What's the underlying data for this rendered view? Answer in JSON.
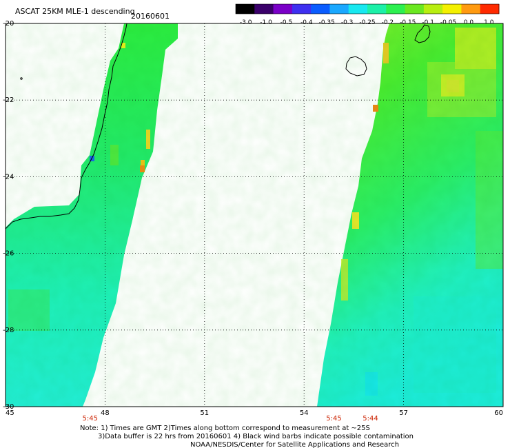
{
  "header": {
    "title": "ASCAT 25KM MLE-1 descending",
    "date": "20160601"
  },
  "colorbar": {
    "labels": [
      "-3.0",
      "-1.0",
      "-0.5",
      "-0.4",
      "-0.35",
      "-0.3",
      "-0.25",
      "-0.2",
      "-0.15",
      "-0.1",
      "-0.05",
      "0.0",
      "1.0"
    ],
    "colors": [
      "#000000",
      "#3a006a",
      "#7a00c8",
      "#3e2ff0",
      "#0a5cff",
      "#1aa8ff",
      "#18e8f0",
      "#1cf0a8",
      "#2cf050",
      "#6ae820",
      "#b8ee10",
      "#f4f000",
      "#ff9a10",
      "#ff2a00"
    ]
  },
  "map": {
    "lon_ticks": [
      "45",
      "48",
      "51",
      "54",
      "57",
      "60"
    ],
    "lat_ticks": [
      "-20",
      "-22",
      "-24",
      "-26",
      "-28",
      "-30"
    ],
    "lon_range": [
      45,
      60
    ],
    "lat_range": [
      -30,
      -20
    ],
    "grid": true,
    "time_labels": [
      {
        "lon": 47.55,
        "text": "5:45"
      },
      {
        "lon": 54.9,
        "text": "5:45"
      },
      {
        "lon": 56.0,
        "text": "5:44"
      }
    ]
  },
  "notes": {
    "line1": "Note: 1) Times are GMT 2)Times along bottom correspond to measurement at ~25S",
    "line2": "3)Data buffer is 22 hrs from 20160601 4) Black wind barbs indicate possible contamination",
    "line3": "NOAA/NESDIS/Center for Satellite Applications and Research"
  }
}
